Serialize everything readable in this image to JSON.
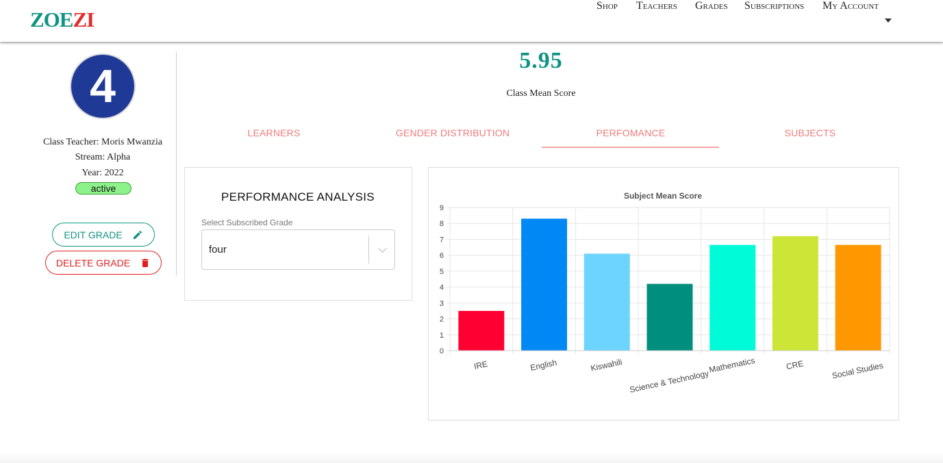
{
  "brand": {
    "part1": "ZOE",
    "part2": "ZI"
  },
  "nav": {
    "links": [
      "Shop",
      "Teachers",
      "Grades",
      "Subscriptions",
      "My Account"
    ]
  },
  "grade": {
    "number": "4",
    "teacher": "Class Teacher: Moris Mwanzia",
    "stream": "Stream: Alpha",
    "year": "Year: 2022",
    "status": "active"
  },
  "actions": {
    "edit": "EDIT GRADE",
    "delete": "DELETE GRADE"
  },
  "score": {
    "value": "5.95",
    "label": "Class Mean Score"
  },
  "tabs": [
    "LEARNERS",
    "GENDER DISTRIBUTION",
    "PERFOMANCE",
    "SUBJECTS"
  ],
  "active_tab": "PERFOMANCE",
  "performance": {
    "title": "PERFORMANCE ANALYSIS",
    "select_label": "Select Subscribed Grade",
    "select_value": "four"
  },
  "colors": {
    "accent": "#0e9384",
    "danger": "#e01e1e",
    "tab": "#f17a7a"
  },
  "chart_data": {
    "type": "bar",
    "title": "Subject Mean Score",
    "categories": [
      "IRE",
      "English",
      "Kiswahili",
      "Science & Technology",
      "Mathematics",
      "CRE",
      "Social Studies"
    ],
    "values": [
      2.5,
      8.3,
      6.1,
      4.2,
      6.65,
      7.2,
      6.65
    ],
    "colors": [
      "#ff0033",
      "#0088f5",
      "#6dd4ff",
      "#008e7e",
      "#00fbd8",
      "#cde536",
      "#ff9800"
    ],
    "ylim": [
      0,
      9
    ],
    "yticks": [
      "0",
      "1",
      "2",
      "3",
      "4",
      "5",
      "6",
      "7",
      "8",
      "9"
    ],
    "grid": true
  }
}
